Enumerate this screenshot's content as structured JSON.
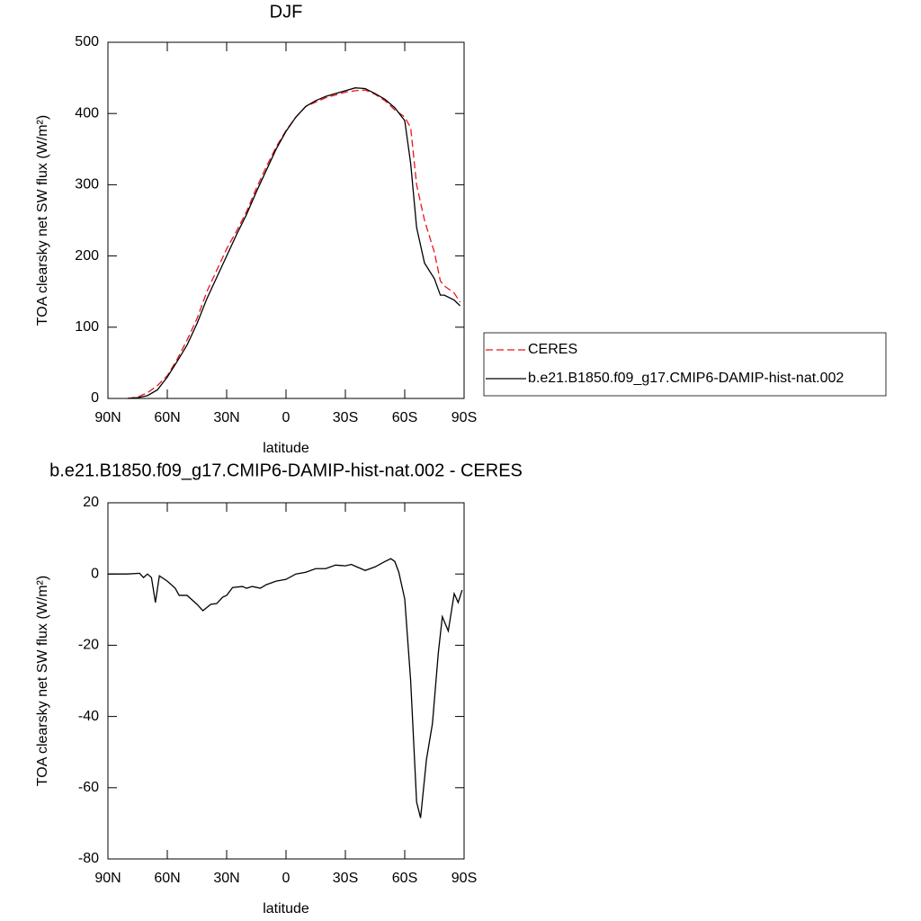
{
  "chart_data": [
    {
      "type": "line",
      "title": "DJF",
      "xlabel": "latitude",
      "ylabel": "TOA clearsky net SW flux (W/m²)",
      "x": [
        80,
        75,
        70,
        65,
        60,
        55,
        50,
        45,
        40,
        35,
        30,
        25,
        20,
        15,
        10,
        5,
        0,
        -5,
        -10,
        -15,
        -20,
        -25,
        -30,
        -35,
        -40,
        -45,
        -50,
        -55,
        -60,
        -63,
        -66,
        -70,
        -75,
        -78,
        -80,
        -85,
        -88
      ],
      "series": [
        {
          "name": "CERES",
          "color": "#e8141c",
          "dash": true,
          "values": [
            0,
            2,
            8,
            18,
            32,
            55,
            82,
            112,
            150,
            180,
            210,
            235,
            262,
            295,
            325,
            353,
            376,
            395,
            410,
            416,
            422,
            426,
            430,
            432,
            433,
            427,
            418,
            405,
            395,
            380,
            300,
            250,
            205,
            165,
            158,
            148,
            135
          ]
        },
        {
          "name": "b.e21.B1850.f09_g17.CMIP6-DAMIP-hist-nat.002",
          "color": "#000000",
          "dash": false,
          "values": [
            0,
            1,
            4,
            12,
            30,
            52,
            75,
            105,
            140,
            170,
            200,
            230,
            258,
            290,
            320,
            350,
            375,
            395,
            410,
            418,
            424,
            428,
            432,
            436,
            435,
            428,
            420,
            408,
            390,
            330,
            240,
            190,
            168,
            145,
            145,
            138,
            130
          ]
        }
      ],
      "xlim": [
        90,
        -90
      ],
      "xticks": [
        {
          "value": 90,
          "label": "90N"
        },
        {
          "value": 60,
          "label": "60N"
        },
        {
          "value": 30,
          "label": "30N"
        },
        0,
        {
          "value": -30,
          "label": "30S"
        },
        {
          "value": -60,
          "label": "60S"
        },
        {
          "value": -90,
          "label": "90S"
        }
      ],
      "ylim": [
        0,
        500
      ],
      "yticks": [
        0,
        100,
        200,
        300,
        400,
        500
      ],
      "legend": "right"
    },
    {
      "type": "line",
      "title": "b.e21.B1850.f09_g17.CMIP6-DAMIP-hist-nat.002 - CERES",
      "xlabel": "latitude",
      "ylabel": "TOA clearsky net SW flux (W/m²)",
      "x": [
        90,
        80,
        74,
        72,
        70,
        68,
        66,
        64,
        60,
        56,
        54,
        50,
        45,
        42,
        38,
        35,
        32,
        30,
        27,
        22,
        20,
        17,
        13,
        10,
        5,
        0,
        -5,
        -10,
        -15,
        -20,
        -25,
        -30,
        -33,
        -35,
        -40,
        -45,
        -50,
        -53,
        -55,
        -57,
        -60,
        -63,
        -66,
        -68,
        -71,
        -74,
        -77,
        -79,
        -82,
        -85,
        -87,
        -89
      ],
      "values": [
        0,
        0,
        0.2,
        -1,
        0,
        -1,
        -8,
        -0.5,
        -2,
        -4,
        -6,
        -6,
        -8.5,
        -10.3,
        -8.5,
        -8.3,
        -6.5,
        -6,
        -3.8,
        -3.5,
        -4,
        -3.5,
        -4,
        -3,
        -2,
        -1.5,
        0,
        0.5,
        1.5,
        1.5,
        2.5,
        2.3,
        2.7,
        2.2,
        1,
        2,
        3.5,
        4.3,
        3.5,
        0.5,
        -7,
        -30,
        -64,
        -68.5,
        -52,
        -42,
        -22,
        -12,
        -16,
        -5.5,
        -8,
        -4.5
      ],
      "color": "#000000",
      "xlim": [
        90,
        -90
      ],
      "xticks": [
        {
          "value": 90,
          "label": "90N"
        },
        {
          "value": 60,
          "label": "60N"
        },
        {
          "value": 30,
          "label": "30N"
        },
        0,
        {
          "value": -30,
          "label": "30S"
        },
        {
          "value": -60,
          "label": "60S"
        },
        {
          "value": -90,
          "label": "90S"
        }
      ],
      "ylim": [
        -80,
        20
      ],
      "yticks": [
        -80,
        -60,
        -40,
        -20,
        0,
        20
      ]
    }
  ]
}
